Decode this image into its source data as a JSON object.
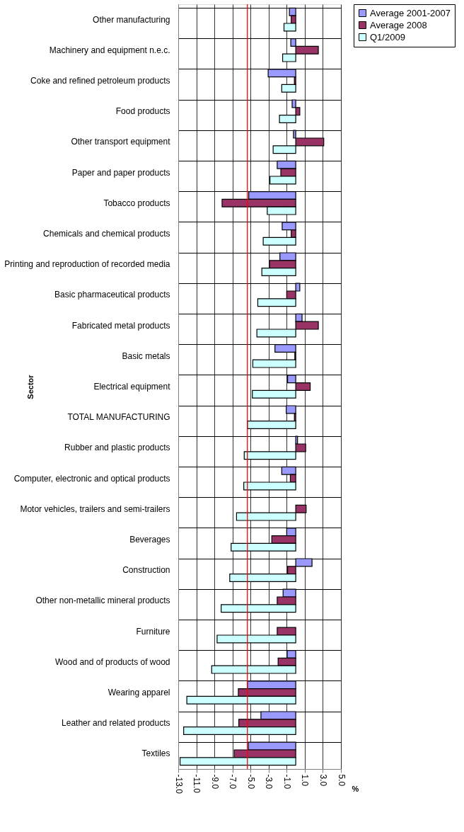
{
  "chart_data": {
    "type": "bar",
    "orientation": "horizontal",
    "ylabel": "Sector",
    "xlabel": "%",
    "categories": [
      "Other manufacturing",
      "Machinery and equipment n.e.c.",
      "Coke and refined petroleum products",
      "Food products",
      "Other transport equipment",
      "Paper and paper products",
      "Tobacco products",
      "Chemicals and chemical products",
      "Printing and reproduction of recorded media",
      "Basic pharmaceutical products",
      "Fabricated metal products",
      "Basic metals",
      "Electrical equipment",
      "TOTAL MANUFACTURING",
      "Rubber and plastic products",
      "Computer, electronic and optical products",
      "Motor vehicles, trailers and semi-trailers",
      "Beverages",
      "Construction",
      "Other non-metallic mineral products",
      "Furniture",
      "Wood and of products of wood",
      "Wearing apparel",
      "Leather and related products",
      "Textiles"
    ],
    "series": [
      {
        "name": "Average 2001-2007",
        "color": "#9999ff",
        "values": [
          -0.7,
          -0.55,
          -3.05,
          -0.4,
          -0.25,
          -2.05,
          -5.2,
          -1.5,
          -1.75,
          0.45,
          0.7,
          -2.3,
          -0.9,
          -1.05,
          0.2,
          -1.55,
          null,
          -1.0,
          1.8,
          -1.4,
          null,
          -0.95,
          -5.35,
          -3.85,
          -5.25
        ]
      },
      {
        "name": "Average 2008",
        "color": "#993366",
        "values": [
          -0.5,
          2.5,
          -0.15,
          0.45,
          3.1,
          -1.65,
          -8.15,
          -0.5,
          -2.9,
          -1.0,
          2.5,
          -0.1,
          1.6,
          -0.15,
          1.1,
          -0.6,
          1.15,
          -2.65,
          -0.9,
          -2.05,
          -2.05,
          -1.95,
          -6.35,
          -6.3,
          -6.8
        ]
      },
      {
        "name": "Q1/2009",
        "color": "#ccffff",
        "values": [
          -1.3,
          -1.45,
          -1.55,
          -1.8,
          -2.5,
          -2.85,
          -3.15,
          -3.6,
          -3.75,
          -4.2,
          -4.3,
          -4.75,
          -4.8,
          -5.35,
          -5.7,
          -5.75,
          -6.55,
          -7.15,
          -7.3,
          -8.25,
          -8.7,
          -9.3,
          -12.05,
          -12.4,
          -12.8
        ]
      }
    ],
    "xlim": [
      -13,
      5
    ],
    "xticks": [
      {
        "value": -13,
        "label": "-13.0"
      },
      {
        "value": -11,
        "label": "-11.0"
      },
      {
        "value": -9,
        "label": "-9.0"
      },
      {
        "value": -7,
        "label": "-7.0"
      },
      {
        "value": -5,
        "label": "-5.0"
      },
      {
        "value": -3,
        "label": "-3.0"
      },
      {
        "value": -1,
        "label": "-1.0"
      },
      {
        "value": 1,
        "label": "1.0"
      },
      {
        "value": 3,
        "label": "3.0"
      },
      {
        "value": 5,
        "label": "5.0"
      }
    ],
    "ref_lines": [
      {
        "axis": "x",
        "value": -5.35,
        "color": "#ff0000"
      }
    ],
    "grid": true,
    "legend": "right"
  }
}
